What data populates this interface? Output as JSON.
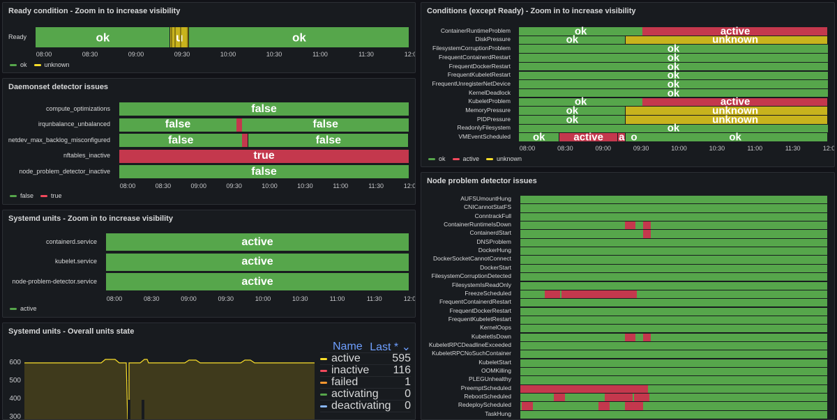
{
  "colors": {
    "ok": "#56a64b",
    "active": "#c4384d",
    "unknown": "#c8b31d",
    "false": "#56a64b",
    "true": "#c4384d",
    "green": "#56a64b",
    "yellow": "#fade2a",
    "red": "#f2495c",
    "orange": "#ff9830",
    "blue": "#8ab8ff"
  },
  "panels": {
    "ready": {
      "title": "Ready condition - Zoom in to increase visibility",
      "rows": [
        {
          "label": "Ready",
          "segments": [
            {
              "from": 0,
              "to": 0.36,
              "state": "ok",
              "text": "ok"
            },
            {
              "from": 0.36,
              "to": 0.41,
              "state": "unknown",
              "text": "u"
            },
            {
              "from": 0.41,
              "to": 1,
              "state": "ok",
              "text": "ok"
            }
          ]
        }
      ],
      "stripes": [
        0.362,
        0.371,
        0.386,
        0.404
      ],
      "ticks": [
        "08:00",
        "08:30",
        "09:00",
        "09:30",
        "10:00",
        "10:30",
        "11:00",
        "11:30",
        "12:00"
      ],
      "legend": [
        {
          "label": "ok",
          "color": "#56a64b"
        },
        {
          "label": "unknown",
          "color": "#fade2a"
        }
      ]
    },
    "daemonset": {
      "title": "Daemonset detector issues",
      "rows": [
        {
          "label": "compute_optimizations",
          "segments": [
            {
              "from": 0,
              "to": 1,
              "state": "false",
              "text": "false"
            }
          ]
        },
        {
          "label": "irqunbalance_unbalanced",
          "segments": [
            {
              "from": 0,
              "to": 0.405,
              "state": "false",
              "text": "false"
            },
            {
              "from": 0.405,
              "to": 0.425,
              "state": "true",
              "text": ""
            },
            {
              "from": 0.425,
              "to": 1,
              "state": "false",
              "text": "false"
            }
          ]
        },
        {
          "label": "netdev_max_backlog_misconfigured",
          "segments": [
            {
              "from": 0,
              "to": 0.425,
              "state": "false",
              "text": "false"
            },
            {
              "from": 0.425,
              "to": 0.445,
              "state": "true",
              "text": ""
            },
            {
              "from": 0.445,
              "to": 1,
              "state": "false",
              "text": "false"
            }
          ]
        },
        {
          "label": "nftables_inactive",
          "segments": [
            {
              "from": 0,
              "to": 1,
              "state": "true",
              "text": "true"
            }
          ]
        },
        {
          "label": "node_problem_detector_inactive",
          "segments": [
            {
              "from": 0,
              "to": 1,
              "state": "false",
              "text": "false"
            }
          ]
        }
      ],
      "ticks": [
        "08:00",
        "08:30",
        "09:00",
        "09:30",
        "10:00",
        "10:30",
        "11:00",
        "11:30",
        "12:00"
      ],
      "legend": [
        {
          "label": "false",
          "color": "#56a64b"
        },
        {
          "label": "true",
          "color": "#f2495c"
        }
      ]
    },
    "systemd": {
      "title": "Systemd units - Zoom in to increase visibility",
      "rows": [
        {
          "label": "containerd.service",
          "segments": [
            {
              "from": 0,
              "to": 1,
              "state": "ok",
              "text": "active"
            }
          ]
        },
        {
          "label": "kubelet.service",
          "segments": [
            {
              "from": 0,
              "to": 1,
              "state": "ok",
              "text": "active"
            }
          ]
        },
        {
          "label": "node-problem-detector.service",
          "segments": [
            {
              "from": 0,
              "to": 1,
              "state": "ok",
              "text": "active"
            }
          ]
        }
      ],
      "ticks": [
        "08:00",
        "08:30",
        "09:00",
        "09:30",
        "10:00",
        "10:30",
        "11:00",
        "11:30",
        "12:00"
      ],
      "legend": [
        {
          "label": "active",
          "color": "#56a64b"
        }
      ]
    },
    "overall": {
      "title": "Systemd units - Overall units state",
      "yticks": [
        "600",
        "500",
        "400",
        "300"
      ],
      "legend_header": {
        "name": "Name",
        "last": "Last *"
      },
      "legend_rows": [
        {
          "name": "active",
          "value": "595",
          "color": "#fade2a"
        },
        {
          "name": "inactive",
          "value": "116",
          "color": "#f2495c"
        },
        {
          "name": "failed",
          "value": "1",
          "color": "#ff9830"
        },
        {
          "name": "activating",
          "value": "0",
          "color": "#56a64b"
        },
        {
          "name": "deactivating",
          "value": "0",
          "color": "#8ab8ff"
        }
      ]
    },
    "conditions": {
      "title": "Conditions (except Ready) - Zoom in to increase visibility",
      "rows": [
        {
          "label": "ContainerRuntimeProblem",
          "segments": [
            {
              "from": 0,
              "to": 0.4,
              "state": "ok",
              "text": "ok"
            },
            {
              "from": 0.4,
              "to": 1,
              "state": "active",
              "text": "active"
            }
          ]
        },
        {
          "label": "DiskPressure",
          "segments": [
            {
              "from": 0,
              "to": 0.345,
              "state": "ok",
              "text": "ok"
            },
            {
              "from": 0.345,
              "to": 0.4,
              "state": "unknown",
              "text": ""
            },
            {
              "from": 0.4,
              "to": 1,
              "state": "unknown",
              "text": "unknown"
            }
          ]
        },
        {
          "label": "FilesystemCorruptionProblem",
          "segments": [
            {
              "from": 0,
              "to": 1,
              "state": "ok",
              "text": "ok"
            }
          ]
        },
        {
          "label": "FrequentContainerdRestart",
          "segments": [
            {
              "from": 0,
              "to": 1,
              "state": "ok",
              "text": "ok"
            }
          ]
        },
        {
          "label": "FrequentDockerRestart",
          "segments": [
            {
              "from": 0,
              "to": 1,
              "state": "ok",
              "text": "ok"
            }
          ]
        },
        {
          "label": "FrequentKubeletRestart",
          "segments": [
            {
              "from": 0,
              "to": 1,
              "state": "ok",
              "text": "ok"
            }
          ]
        },
        {
          "label": "FrequentUnregisterNetDevice",
          "segments": [
            {
              "from": 0,
              "to": 1,
              "state": "ok",
              "text": "ok"
            }
          ]
        },
        {
          "label": "KernelDeadlock",
          "segments": [
            {
              "from": 0,
              "to": 1,
              "state": "ok",
              "text": "ok"
            }
          ]
        },
        {
          "label": "KubeletProblem",
          "segments": [
            {
              "from": 0,
              "to": 0.4,
              "state": "ok",
              "text": "ok"
            },
            {
              "from": 0.4,
              "to": 1,
              "state": "active",
              "text": "active"
            }
          ]
        },
        {
          "label": "MemoryPressure",
          "segments": [
            {
              "from": 0,
              "to": 0.345,
              "state": "ok",
              "text": "ok"
            },
            {
              "from": 0.345,
              "to": 0.4,
              "state": "unknown",
              "text": ""
            },
            {
              "from": 0.4,
              "to": 1,
              "state": "unknown",
              "text": "unknown"
            }
          ]
        },
        {
          "label": "PIDPressure",
          "segments": [
            {
              "from": 0,
              "to": 0.345,
              "state": "ok",
              "text": "ok"
            },
            {
              "from": 0.345,
              "to": 0.4,
              "state": "unknown",
              "text": ""
            },
            {
              "from": 0.4,
              "to": 1,
              "state": "unknown",
              "text": "unknown"
            }
          ]
        },
        {
          "label": "ReadonlyFilesystem",
          "segments": [
            {
              "from": 0,
              "to": 1,
              "state": "ok",
              "text": "ok"
            }
          ]
        },
        {
          "label": "VMEventScheduled",
          "segments": [
            {
              "from": 0,
              "to": 0.13,
              "state": "ok",
              "text": "ok"
            },
            {
              "from": 0.13,
              "to": 0.32,
              "state": "active",
              "text": "active"
            },
            {
              "from": 0.32,
              "to": 0.345,
              "state": "active",
              "text": "a"
            },
            {
              "from": 0.345,
              "to": 0.4,
              "state": "ok",
              "text": "o"
            },
            {
              "from": 0.4,
              "to": 1,
              "state": "ok",
              "text": "ok"
            }
          ]
        }
      ],
      "ticks": [
        "08:00",
        "08:30",
        "09:00",
        "09:30",
        "10:00",
        "10:30",
        "11:00",
        "11:30",
        "12:00"
      ],
      "legend": [
        {
          "label": "ok",
          "color": "#56a64b"
        },
        {
          "label": "active",
          "color": "#f2495c"
        },
        {
          "label": "unknown",
          "color": "#fade2a"
        }
      ]
    },
    "npd": {
      "title": "Node problem detector issues",
      "rows": [
        {
          "label": "AUFSUmountHung",
          "red": []
        },
        {
          "label": "CNICannotStatFS",
          "red": []
        },
        {
          "label": "ConntrackFull",
          "red": []
        },
        {
          "label": "ContainerRuntimeIsDown",
          "red": [
            [
              0.34,
              0.375
            ],
            [
              0.4,
              0.425
            ]
          ]
        },
        {
          "label": "ContainerdStart",
          "red": [
            [
              0.4,
              0.425
            ]
          ]
        },
        {
          "label": "DNSProblem",
          "red": []
        },
        {
          "label": "DockerHung",
          "red": []
        },
        {
          "label": "DockerSocketCannotConnect",
          "red": []
        },
        {
          "label": "DockerStart",
          "red": []
        },
        {
          "label": "FilesystemCorruptionDetected",
          "red": []
        },
        {
          "label": "FilesystemIsReadOnly",
          "red": []
        },
        {
          "label": "FreezeScheduled",
          "red": [
            [
              0.08,
              0.13
            ],
            [
              0.135,
              0.38
            ]
          ]
        },
        {
          "label": "FrequentContainerdRestart",
          "red": []
        },
        {
          "label": "FrequentDockerRestart",
          "red": []
        },
        {
          "label": "FrequentKubeletRestart",
          "red": []
        },
        {
          "label": "KernelOops",
          "red": []
        },
        {
          "label": "KubeletIsDown",
          "red": [
            [
              0.34,
              0.375
            ],
            [
              0.4,
              0.425
            ]
          ]
        },
        {
          "label": "KubeletRPCDeadlineExceeded",
          "red": []
        },
        {
          "label": "KubeletRPCNoSuchContainer",
          "red": []
        },
        {
          "label": "KubeletStart",
          "red": []
        },
        {
          "label": "OOMKilling",
          "red": []
        },
        {
          "label": "PLEGUnhealthy",
          "red": []
        },
        {
          "label": "PreemptScheduled",
          "red": [
            [
              0,
              0.415
            ]
          ]
        },
        {
          "label": "RebootScheduled",
          "red": [
            [
              0.11,
              0.145
            ],
            [
              0.275,
              0.365
            ],
            [
              0.37,
              0.42
            ]
          ]
        },
        {
          "label": "RedeployScheduled",
          "red": [
            [
              0.005,
              0.04
            ],
            [
              0.255,
              0.29
            ],
            [
              0.34,
              0.4
            ]
          ]
        },
        {
          "label": "TaskHung",
          "red": []
        }
      ]
    }
  }
}
